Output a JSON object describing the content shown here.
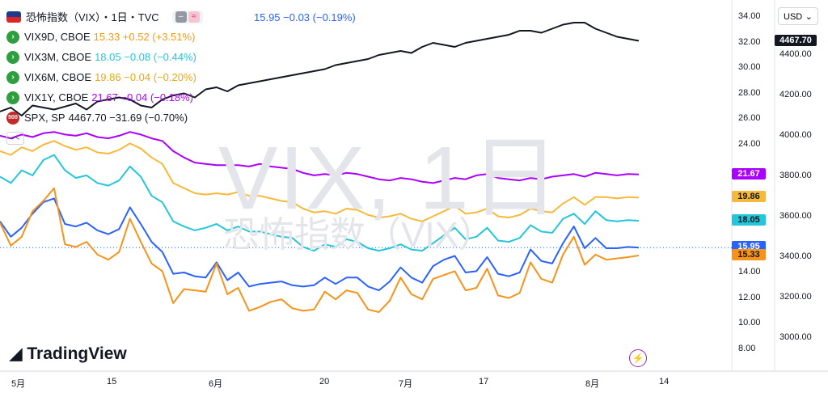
{
  "header": {
    "title": "恐怖指数（VIX）・1日・TVC",
    "price_line": "15.95 −0.03 (−0.19%)",
    "rows": [
      {
        "label": "VIX9D, CBOE",
        "value": "15.33 +0.52 (+3.51%)",
        "color": "#f39c12"
      },
      {
        "label": "VIX3M, CBOE",
        "value": "18.05 −0.08 (−0.44%)",
        "color": "#26c6da"
      },
      {
        "label": "VIX6M, CBOE",
        "value": "19.86 −0.04 (−0.20%)",
        "color": "#f6b93b"
      },
      {
        "label": "VIX1Y, CBOE",
        "value": "21.67 −0.04 (−0.18%)",
        "color": "#aa00ff"
      },
      {
        "label": "SPX, SP",
        "value": "4467.70 −31.69 (−0.70%)",
        "color": "#131722"
      }
    ],
    "spx_badge": "500"
  },
  "watermark": {
    "main": "VIX, 1日",
    "sub": "恐怖指数（VIX）"
  },
  "brand": "TradingView",
  "currency": "USD",
  "colors": {
    "vix": "#2962ff",
    "vix9d": "#f7931a",
    "vix3m": "#26c6da",
    "vix6m": "#f6b93b",
    "vix1y": "#aa00ff",
    "spx": "#131722"
  },
  "left_axis_labels": [
    "34.00",
    "32.00",
    "30.00",
    "28.00",
    "26.00",
    "24.00",
    "14.00",
    "12.00",
    "10.00",
    "8.00"
  ],
  "right_axis_labels": [
    "4400.00",
    "4200.00",
    "4000.00",
    "3800.00",
    "3600.00",
    "3400.00",
    "3200.00",
    "3000.00"
  ],
  "x_labels": [
    "5月",
    "15",
    "6月",
    "20",
    "7月",
    "17",
    "8月",
    "14"
  ],
  "last_labels": [
    {
      "text": "4467.70",
      "bg": "#131722",
      "fg": "#ffffff"
    },
    {
      "text": "21.67",
      "bg": "#aa00ff",
      "fg": "#ffffff"
    },
    {
      "text": "19.86",
      "bg": "#f6b93b",
      "fg": "#131722"
    },
    {
      "text": "18.05",
      "bg": "#26c6da",
      "fg": "#131722"
    },
    {
      "text": "15.95",
      "bg": "#2962ff",
      "fg": "#ffffff"
    },
    {
      "text": "15.33",
      "bg": "#f7931a",
      "fg": "#131722"
    }
  ],
  "chart_data": {
    "type": "line",
    "title": "恐怖指数（VIX）・1日・TVC",
    "left_ylim": [
      7,
      35
    ],
    "right_ylim": [
      2900,
      4550
    ],
    "series": [
      {
        "name": "SPX, SP",
        "axis": "right",
        "values": [
          4120,
          4140,
          4100,
          4150,
          4140,
          4130,
          4145,
          4160,
          4130,
          4170,
          4180,
          4190,
          4180,
          4150,
          4140,
          4180,
          4200,
          4210,
          4190,
          4230,
          4240,
          4220,
          4250,
          4260,
          4270,
          4280,
          4290,
          4300,
          4310,
          4320,
          4330,
          4350,
          4360,
          4370,
          4380,
          4400,
          4410,
          4420,
          4410,
          4440,
          4460,
          4450,
          4440,
          4460,
          4470,
          4480,
          4490,
          4500,
          4520,
          4520,
          4510,
          4530,
          4550,
          4560,
          4560,
          4530,
          4510,
          4490,
          4480,
          4470
        ]
      },
      {
        "name": "VIX1Y, CBOE",
        "axis": "left",
        "values": [
          24.7,
          24.5,
          24.8,
          24.6,
          24.9,
          25.0,
          24.8,
          24.7,
          24.9,
          24.6,
          24.5,
          24.7,
          25.0,
          24.8,
          24.5,
          24.3,
          23.5,
          23.0,
          22.6,
          22.5,
          22.4,
          22.4,
          22.4,
          22.3,
          22.5,
          22.3,
          22.2,
          22.1,
          21.8,
          21.6,
          21.7,
          21.6,
          21.8,
          21.7,
          21.5,
          21.3,
          21.2,
          21.4,
          21.3,
          21.1,
          21.0,
          21.2,
          21.4,
          21.3,
          21.6,
          21.7,
          21.4,
          21.3,
          21.2,
          21.4,
          21.3,
          21.5,
          21.6,
          21.7,
          21.5,
          21.8,
          21.7,
          21.6,
          21.7,
          21.67
        ]
      },
      {
        "name": "VIX6M, CBOE",
        "axis": "left",
        "values": [
          23.5,
          23.2,
          23.8,
          23.5,
          24.0,
          24.3,
          23.9,
          23.6,
          23.8,
          23.4,
          23.3,
          23.6,
          24.1,
          23.7,
          23.0,
          22.5,
          21.0,
          20.6,
          20.2,
          20.1,
          20.2,
          20.1,
          20.3,
          20.0,
          20.0,
          19.8,
          19.6,
          19.5,
          19.0,
          18.7,
          18.8,
          18.6,
          19.0,
          18.9,
          18.5,
          18.3,
          18.4,
          18.6,
          18.2,
          18.0,
          18.4,
          18.8,
          19.2,
          18.6,
          18.7,
          19.0,
          18.4,
          18.3,
          18.5,
          19.0,
          18.8,
          18.7,
          19.4,
          19.9,
          19.3,
          19.9,
          19.9,
          19.8,
          19.9,
          19.86
        ]
      },
      {
        "name": "VIX3M, CBOE",
        "axis": "left",
        "values": [
          21.5,
          21.0,
          22.0,
          21.6,
          22.8,
          23.2,
          22.0,
          21.4,
          21.6,
          21.0,
          20.8,
          21.2,
          22.3,
          21.5,
          20.0,
          19.5,
          18.0,
          17.6,
          17.3,
          17.5,
          17.8,
          17.3,
          17.6,
          17.2,
          17.2,
          17.0,
          16.8,
          16.7,
          16.0,
          15.7,
          16.2,
          16.0,
          16.6,
          16.4,
          15.9,
          15.7,
          15.9,
          16.2,
          15.8,
          15.7,
          16.3,
          16.9,
          17.5,
          16.6,
          16.8,
          17.5,
          16.5,
          16.4,
          16.7,
          17.7,
          17.2,
          17.1,
          18.2,
          18.6,
          17.8,
          18.8,
          18.1,
          18.0,
          18.1,
          18.05
        ]
      },
      {
        "name": "恐怖指数（VIX）",
        "axis": "left",
        "values": [
          18.0,
          16.8,
          17.5,
          18.6,
          19.5,
          19.8,
          17.8,
          17.6,
          17.9,
          17.3,
          17.0,
          17.4,
          19.1,
          17.8,
          16.4,
          15.6,
          13.9,
          14.0,
          13.7,
          13.6,
          14.8,
          13.4,
          14.0,
          12.9,
          13.1,
          13.2,
          13.3,
          13.0,
          12.9,
          13.0,
          13.6,
          13.1,
          13.6,
          13.6,
          12.9,
          12.6,
          13.3,
          14.4,
          13.6,
          13.2,
          14.5,
          15.0,
          15.3,
          14.0,
          14.1,
          15.2,
          13.9,
          13.7,
          14.0,
          15.8,
          14.9,
          14.7,
          16.3,
          17.6,
          15.9,
          16.7,
          15.9,
          15.9,
          16.0,
          15.95
        ]
      },
      {
        "name": "VIX9D, CBOE",
        "axis": "left",
        "values": [
          17.9,
          16.1,
          16.8,
          18.8,
          19.6,
          20.6,
          16.2,
          16.0,
          16.4,
          15.4,
          15.0,
          15.6,
          18.2,
          16.4,
          14.7,
          14.1,
          11.6,
          12.7,
          12.6,
          12.5,
          14.7,
          12.3,
          12.8,
          11.0,
          11.3,
          11.7,
          11.9,
          11.2,
          11.0,
          11.1,
          12.5,
          11.9,
          12.6,
          12.4,
          11.1,
          10.9,
          11.8,
          13.6,
          12.3,
          11.9,
          13.5,
          13.8,
          14.1,
          12.6,
          12.8,
          14.3,
          12.2,
          12.0,
          12.4,
          14.8,
          13.5,
          13.2,
          15.4,
          16.8,
          14.6,
          15.4,
          15.0,
          15.1,
          15.2,
          15.33
        ]
      }
    ]
  }
}
